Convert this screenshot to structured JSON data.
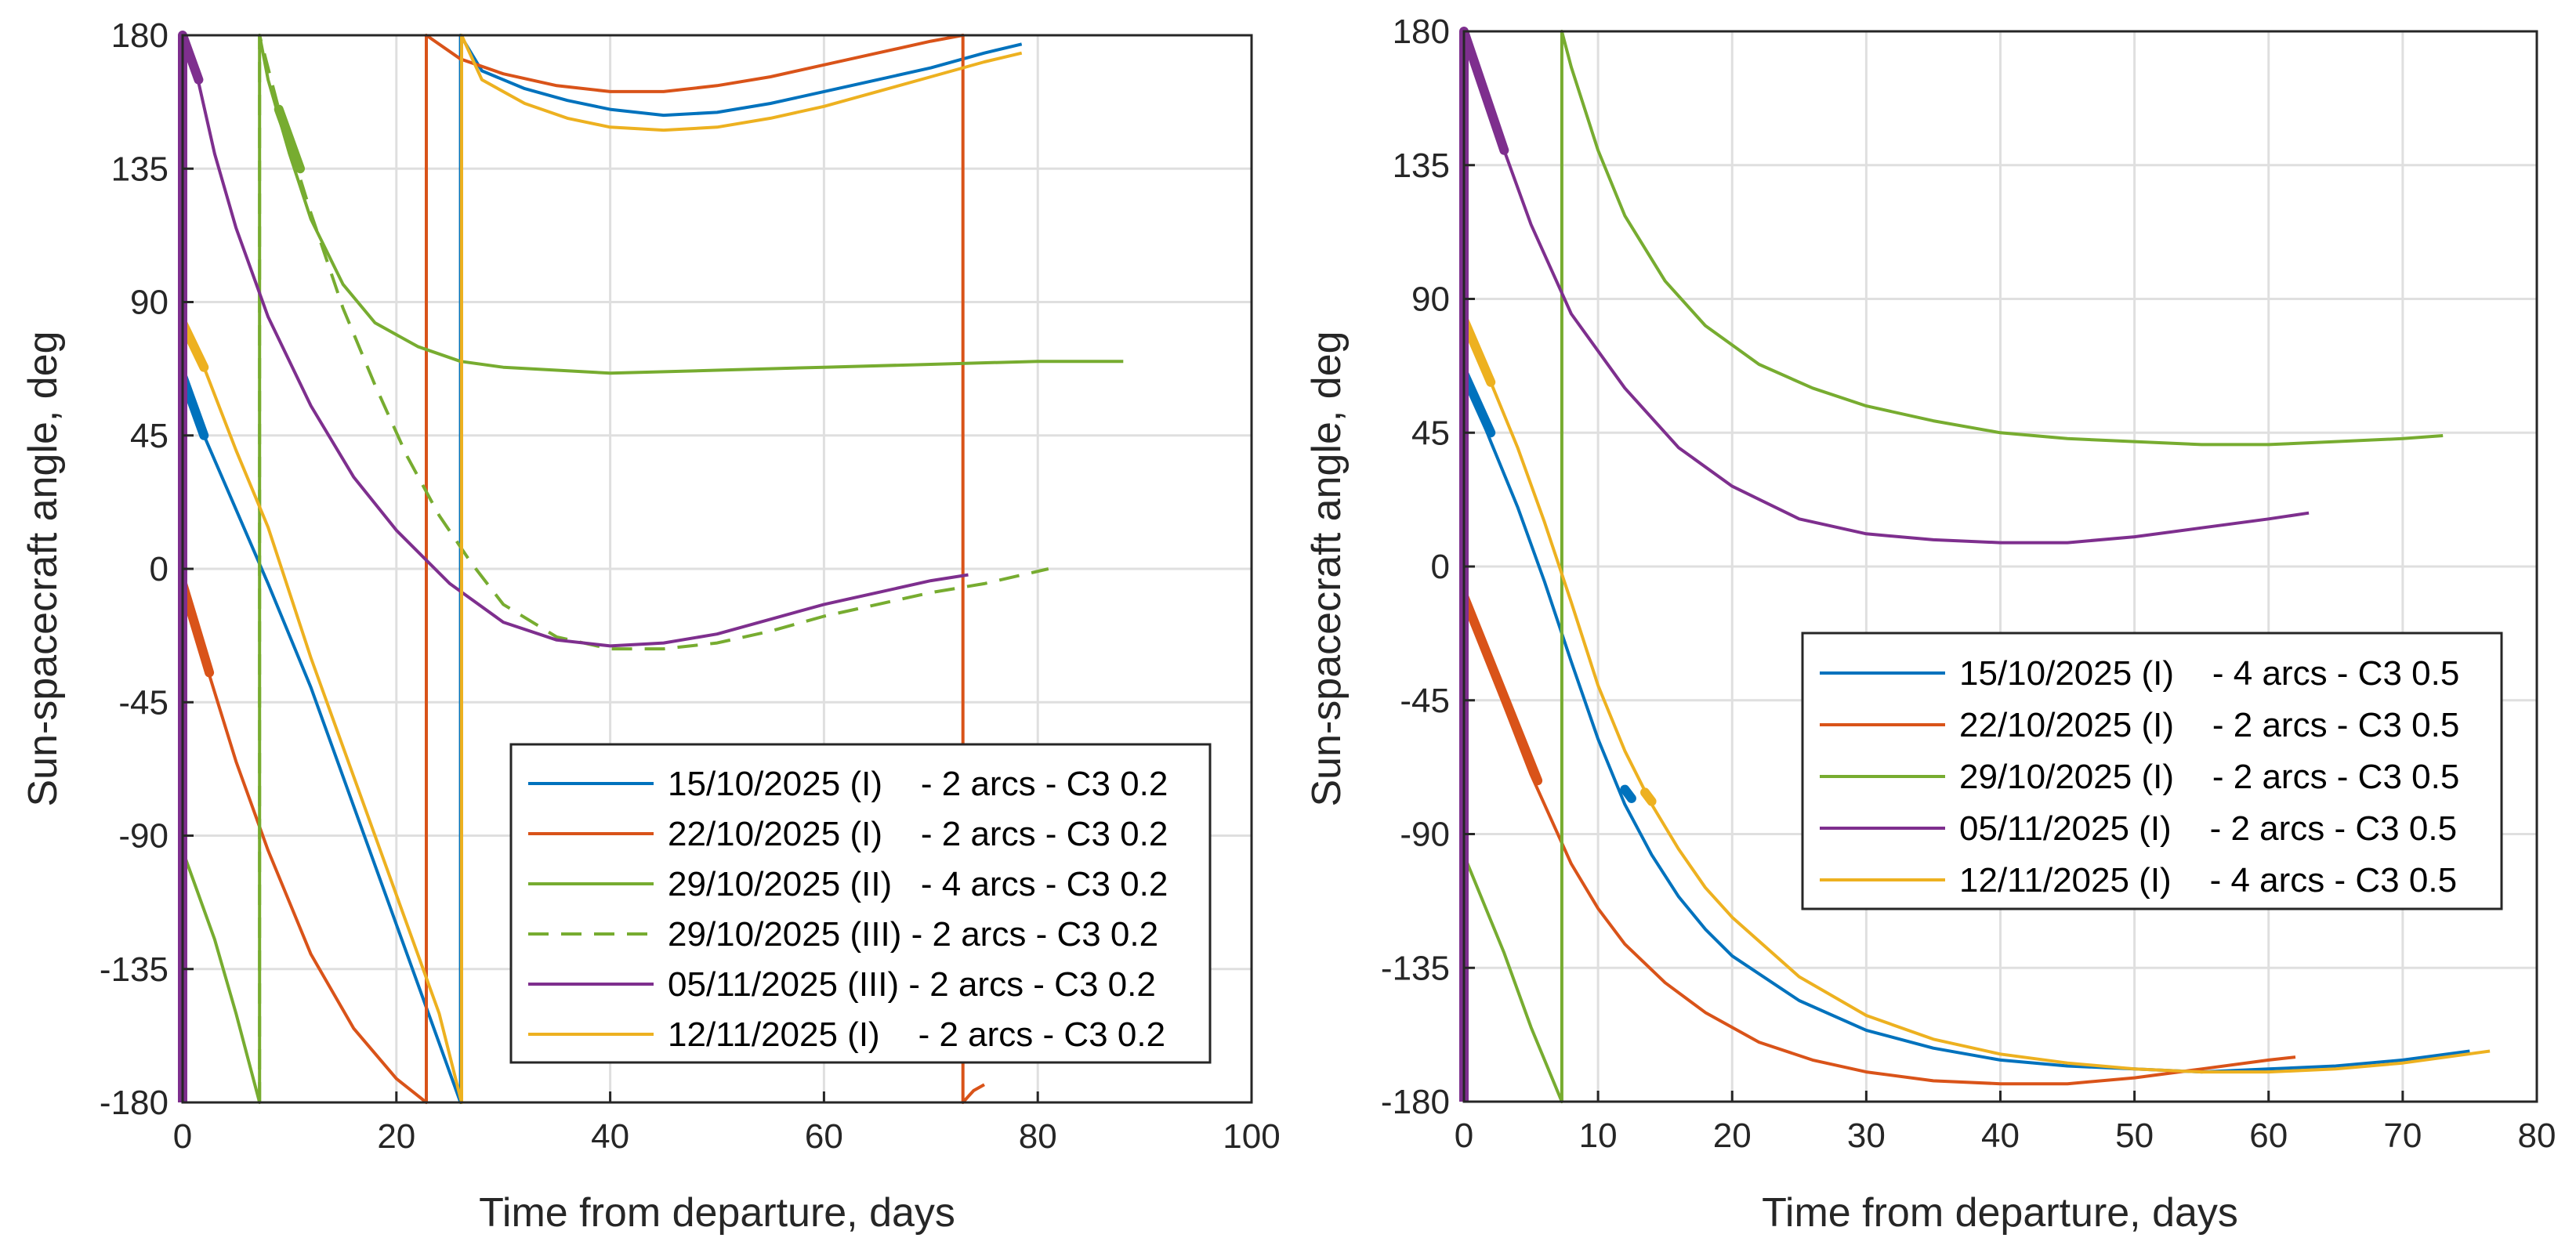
{
  "colors": {
    "blue": "#0072BD",
    "red": "#D95319",
    "yellow": "#EDB120",
    "purple": "#7E2F8E",
    "green": "#77AC30",
    "axis": "#262626",
    "grid": "#dfdfdf"
  },
  "chart_data": [
    {
      "type": "line",
      "xlabel": "Time from departure, days",
      "ylabel": "Sun-spacecraft angle, deg",
      "xlim": [
        0,
        100
      ],
      "ylim": [
        -180,
        180
      ],
      "xticks": [
        0,
        20,
        40,
        60,
        80,
        100
      ],
      "yticks": [
        -180,
        -135,
        -90,
        -45,
        0,
        45,
        90,
        135,
        180
      ],
      "grid": true,
      "legend_position": "bottom-right",
      "legend": [
        {
          "label": "15/10/2025 (I)    - 2 arcs - C3 0.2",
          "color": "#0072BD",
          "style": "solid"
        },
        {
          "label": "22/10/2025 (I)    - 2 arcs - C3 0.2",
          "color": "#D95319",
          "style": "solid"
        },
        {
          "label": "29/10/2025 (II)   - 4 arcs - C3 0.2",
          "color": "#77AC30",
          "style": "solid"
        },
        {
          "label": "29/10/2025 (III) - 2 arcs - C3 0.2",
          "color": "#77AC30",
          "style": "dashed"
        },
        {
          "label": "05/11/2025 (III) - 2 arcs - C3 0.2",
          "color": "#7E2F8E",
          "style": "solid"
        },
        {
          "label": "12/11/2025 (I)    - 2 arcs - C3 0.2",
          "color": "#EDB120",
          "style": "solid"
        }
      ],
      "series": [
        {
          "name": "15/10/2025 (I) - 2 arcs - C3 0.2",
          "color": "#0072BD",
          "style": "solid",
          "x": [
            0,
            2,
            5,
            8,
            12,
            16,
            20,
            24,
            26,
            26,
            28,
            32,
            36,
            40,
            45,
            50,
            55,
            60,
            65,
            70,
            75,
            78.5
          ],
          "y": [
            65,
            45,
            20,
            -5,
            -40,
            -80,
            -120,
            -160,
            -180,
            180,
            168,
            162,
            158,
            155,
            153,
            154,
            157,
            161,
            165,
            169,
            174,
            177
          ],
          "thick": [
            [
              0,
              65
            ],
            [
              2,
              45
            ]
          ]
        },
        {
          "name": "22/10/2025 (I) - 2 arcs - C3 0.2",
          "color": "#D95319",
          "style": "solid",
          "x": [
            0,
            2,
            5,
            8,
            12,
            16,
            20,
            22.8,
            22.8,
            26,
            30,
            35,
            40,
            45,
            50,
            55,
            60,
            65,
            70,
            73,
            73,
            73.5,
            74,
            75
          ],
          "y": [
            -5,
            -30,
            -65,
            -95,
            -130,
            -155,
            -172,
            -180,
            180,
            172,
            167,
            163,
            161,
            161,
            163,
            166,
            170,
            174,
            178,
            180,
            -180,
            -178,
            -176,
            -174
          ],
          "thick": [
            [
              0,
              -5
            ],
            [
              2.5,
              -35
            ]
          ]
        },
        {
          "name": "29/10/2025 (II) - 4 arcs - C3 0.2",
          "color": "#77AC30",
          "style": "solid",
          "x": [
            0,
            3,
            5,
            7.2,
            7.2,
            8,
            10,
            12,
            15,
            18,
            22,
            26,
            30,
            40,
            50,
            60,
            70,
            80,
            88
          ],
          "y": [
            -95,
            -125,
            -150,
            -180,
            180,
            165,
            140,
            118,
            96,
            83,
            75,
            70,
            68,
            66,
            67,
            68,
            69,
            70,
            70
          ],
          "thick": [
            [
              9,
              155
            ],
            [
              11,
              135
            ]
          ]
        },
        {
          "name": "29/10/2025 (III) - 2 arcs - C3 0.2",
          "color": "#77AC30",
          "style": "dashed",
          "x": [
            7.2,
            7.2,
            9,
            12,
            15,
            18,
            21,
            24,
            27,
            30,
            35,
            40,
            45,
            50,
            55,
            60,
            65,
            70,
            75,
            81
          ],
          "y": [
            -180,
            180,
            155,
            120,
            88,
            62,
            38,
            18,
            2,
            -12,
            -23,
            -27,
            -27,
            -25,
            -21,
            -16,
            -12,
            -8,
            -5,
            0
          ]
        },
        {
          "name": "05/11/2025 (III) - 2 arcs - C3 0.2",
          "color": "#7E2F8E",
          "style": "solid",
          "x": [
            0,
            0,
            1,
            3,
            5,
            8,
            12,
            16,
            20,
            25,
            30,
            35,
            40,
            45,
            50,
            55,
            60,
            65,
            70,
            73.5
          ],
          "y": [
            -180,
            180,
            172,
            140,
            115,
            85,
            55,
            31,
            13,
            -5,
            -18,
            -24,
            -26,
            -25,
            -22,
            -17,
            -12,
            -8,
            -4,
            -2
          ],
          "thick": [
            [
              0,
              180
            ],
            [
              1.5,
              165
            ]
          ]
        },
        {
          "name": "12/11/2025 (I) - 2 arcs - C3 0.2",
          "color": "#EDB120",
          "style": "solid",
          "x": [
            0,
            2,
            5,
            8,
            12,
            16,
            20,
            24,
            26.1,
            26.1,
            28,
            32,
            36,
            40,
            45,
            50,
            55,
            60,
            65,
            70,
            75,
            78.5
          ],
          "y": [
            83,
            68,
            40,
            14,
            -30,
            -70,
            -110,
            -150,
            -180,
            180,
            165,
            157,
            152,
            149,
            148,
            149,
            152,
            156,
            161,
            166,
            171,
            174
          ],
          "thick": [
            [
              0,
              83
            ],
            [
              2,
              68
            ]
          ]
        }
      ]
    },
    {
      "type": "line",
      "xlabel": "Time from departure, days",
      "ylabel": "Sun-spacecraft angle, deg",
      "xlim": [
        0,
        80
      ],
      "ylim": [
        -180,
        180
      ],
      "xticks": [
        0,
        10,
        20,
        30,
        40,
        50,
        60,
        70,
        80
      ],
      "yticks": [
        -180,
        -135,
        -90,
        -45,
        0,
        45,
        90,
        135,
        180
      ],
      "grid": true,
      "legend_position": "center-right",
      "legend": [
        {
          "label": "15/10/2025 (I)    - 4 arcs - C3 0.5",
          "color": "#0072BD",
          "style": "solid"
        },
        {
          "label": "22/10/2025 (I)    - 2 arcs - C3 0.5",
          "color": "#D95319",
          "style": "solid"
        },
        {
          "label": "29/10/2025 (I)    - 2 arcs - C3 0.5",
          "color": "#77AC30",
          "style": "solid"
        },
        {
          "label": "05/11/2025 (I)    - 2 arcs - C3 0.5",
          "color": "#7E2F8E",
          "style": "solid"
        },
        {
          "label": "12/11/2025 (I)    - 4 arcs - C3 0.5",
          "color": "#EDB120",
          "style": "solid"
        }
      ],
      "series": [
        {
          "name": "15/10/2025 (I) - 4 arcs - C3 0.5",
          "color": "#0072BD",
          "style": "solid",
          "x": [
            0,
            2,
            4,
            6,
            8,
            10,
            12,
            14,
            16,
            18,
            20,
            25,
            30,
            35,
            40,
            45,
            50,
            55,
            60,
            65,
            70,
            75
          ],
          "y": [
            65,
            42,
            20,
            -5,
            -32,
            -58,
            -80,
            -97,
            -111,
            -122,
            -131,
            -146,
            -156,
            -162,
            -166,
            -168,
            -169,
            -170,
            -169,
            -168,
            -166,
            -163
          ],
          "thick": [
            [
              0,
              65
            ],
            [
              2,
              45
            ],
            [
              12,
              -75
            ],
            [
              12.5,
              -78
            ]
          ]
        },
        {
          "name": "22/10/2025 (I) - 2 arcs - C3 0.5",
          "color": "#D95319",
          "style": "solid",
          "x": [
            0,
            2,
            5,
            8,
            10,
            12,
            15,
            18,
            22,
            26,
            30,
            35,
            40,
            45,
            50,
            55,
            60,
            62
          ],
          "y": [
            -10,
            -35,
            -70,
            -100,
            -115,
            -127,
            -140,
            -150,
            -160,
            -166,
            -170,
            -173,
            -174,
            -174,
            -172,
            -169,
            -166,
            -165
          ],
          "thick": [
            [
              0,
              -10
            ],
            [
              5.5,
              -72
            ]
          ]
        },
        {
          "name": "29/10/2025 (I) - 2 arcs - C3 0.5",
          "color": "#77AC30",
          "style": "solid",
          "x": [
            0,
            3,
            5,
            7.3,
            7.3,
            8,
            10,
            12,
            15,
            18,
            22,
            26,
            30,
            35,
            40,
            45,
            50,
            55,
            60,
            65,
            70,
            73
          ],
          "y": [
            -97,
            -130,
            -155,
            -180,
            180,
            168,
            140,
            118,
            96,
            81,
            68,
            60,
            54,
            49,
            45,
            43,
            42,
            41,
            41,
            42,
            43,
            44
          ]
        },
        {
          "name": "05/11/2025 (I) - 2 arcs - C3 0.5",
          "color": "#7E2F8E",
          "style": "solid",
          "x": [
            0,
            0,
            1,
            3,
            5,
            8,
            12,
            16,
            20,
            25,
            30,
            35,
            40,
            45,
            50,
            55,
            60,
            63
          ],
          "y": [
            -180,
            180,
            168,
            140,
            115,
            85,
            60,
            40,
            27,
            16,
            11,
            9,
            8,
            8,
            10,
            13,
            16,
            18
          ],
          "thick": [
            [
              0,
              180
            ],
            [
              3,
              140
            ]
          ]
        },
        {
          "name": "12/11/2025 (I) - 4 arcs - C3 0.5",
          "color": "#EDB120",
          "style": "solid",
          "x": [
            0,
            2,
            4,
            6,
            8,
            10,
            12,
            14,
            16,
            18,
            20,
            25,
            30,
            35,
            40,
            45,
            50,
            55,
            60,
            65,
            70,
            76.5
          ],
          "y": [
            83,
            62,
            40,
            15,
            -12,
            -40,
            -62,
            -80,
            -95,
            -108,
            -118,
            -138,
            -151,
            -159,
            -164,
            -167,
            -169,
            -170,
            -170,
            -169,
            -167,
            -163
          ],
          "thick": [
            [
              0,
              83
            ],
            [
              2,
              62
            ],
            [
              13.5,
              -76
            ],
            [
              14,
              -79
            ]
          ]
        }
      ]
    }
  ]
}
